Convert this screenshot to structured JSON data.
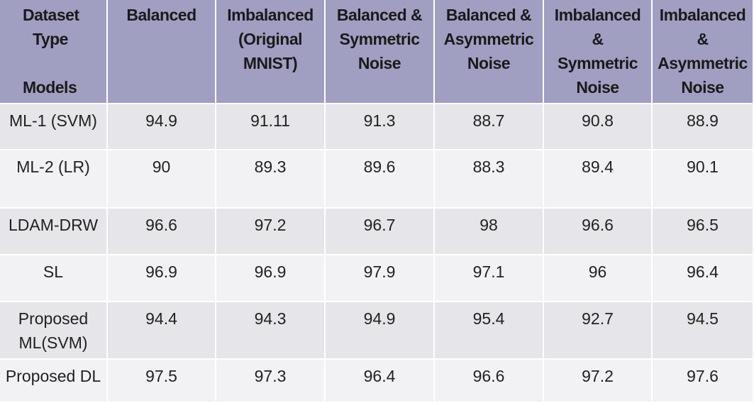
{
  "table": {
    "corner": {
      "top": [
        "Dataset",
        "Type"
      ],
      "bottom": "Models"
    },
    "columns": [
      [
        "Balanced"
      ],
      [
        "Imbalanced",
        "(Original",
        "MNIST)"
      ],
      [
        "Balanced &",
        "Symmetric",
        "Noise"
      ],
      [
        "Balanced &",
        "Asymmetric",
        "Noise"
      ],
      [
        "Imbalanced",
        "&",
        "Symmetric",
        "Noise"
      ],
      [
        "Imbalanced",
        "&",
        "Asymmetric",
        "Noise"
      ]
    ],
    "rows": [
      {
        "model": [
          "ML-1 (SVM)"
        ],
        "values": [
          94.9,
          91.11,
          91.3,
          88.7,
          90.8,
          88.9
        ]
      },
      {
        "model": [
          "ML-2 (LR)"
        ],
        "values": [
          90,
          89.3,
          89.6,
          88.3,
          89.4,
          90.1
        ]
      },
      {
        "model": [
          "LDAM-DRW"
        ],
        "values": [
          96.6,
          97.2,
          96.7,
          98,
          96.6,
          96.5
        ]
      },
      {
        "model": [
          "SL"
        ],
        "values": [
          96.9,
          96.9,
          97.9,
          97.1,
          96,
          96.4
        ]
      },
      {
        "model": [
          "Proposed",
          "ML(SVM)"
        ],
        "values": [
          94.4,
          94.3,
          94.9,
          95.4,
          92.7,
          94.5
        ]
      },
      {
        "model": [
          "Proposed DL"
        ],
        "values": [
          97.5,
          97.3,
          96.4,
          96.6,
          97.2,
          97.6
        ]
      }
    ]
  }
}
